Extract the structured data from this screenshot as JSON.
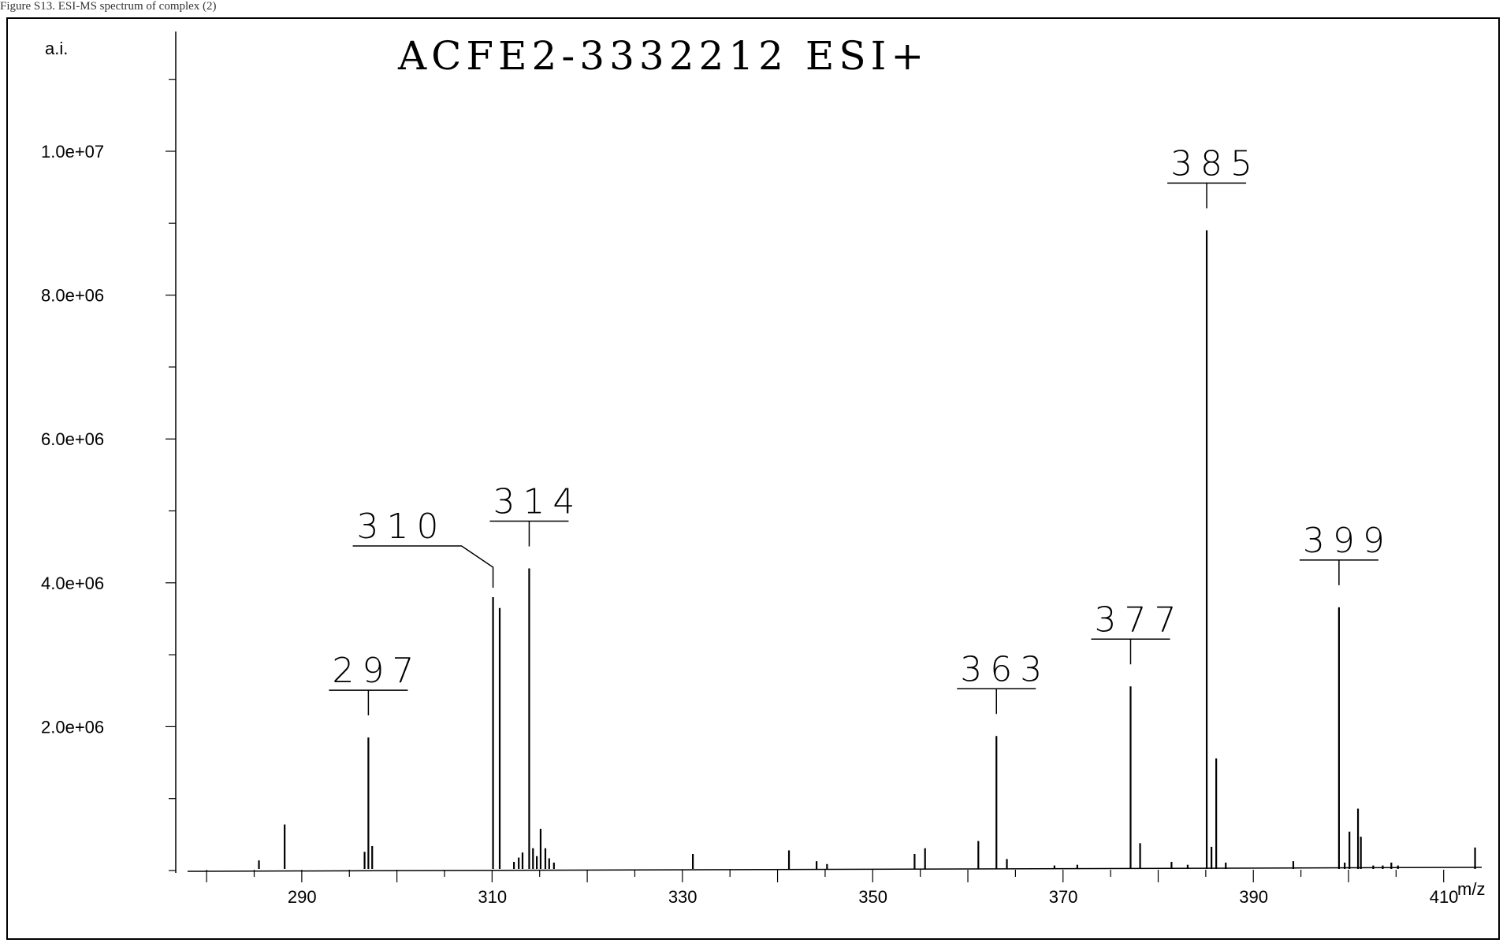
{
  "caption": "Figure S13. ESI-MS spectrum of complex (2)",
  "chart_data": {
    "type": "bar",
    "title": "ACFE2-3332212 ESI+",
    "ylabel": "a.i.",
    "xlabel": "m/z",
    "xlim": [
      278,
      414
    ],
    "ylim": [
      0,
      11500000
    ],
    "x_ticks": [
      290,
      310,
      330,
      350,
      370,
      390,
      410
    ],
    "y_ticks": [
      2000000,
      4000000,
      6000000,
      8000000,
      10000000
    ],
    "y_tick_labels": [
      "2.0e+06",
      "4.0e+06",
      "6.0e+06",
      "8.0e+06",
      "1.0e+07"
    ],
    "labeled_peaks": [
      {
        "label": "297",
        "x": 297.0,
        "y": 1850000
      },
      {
        "label": "310",
        "x": 310.1,
        "y": 3800000
      },
      {
        "label": "314",
        "x": 313.9,
        "y": 4200000
      },
      {
        "label": "363",
        "x": 363.0,
        "y": 1870000
      },
      {
        "label": "377",
        "x": 377.1,
        "y": 2560000
      },
      {
        "label": "385",
        "x": 385.1,
        "y": 8900000
      },
      {
        "label": "399",
        "x": 399.0,
        "y": 3660000
      }
    ],
    "minor_peaks": [
      {
        "x": 285.5,
        "y": 140000
      },
      {
        "x": 288.2,
        "y": 640000
      },
      {
        "x": 296.6,
        "y": 260000
      },
      {
        "x": 297.4,
        "y": 340000
      },
      {
        "x": 310.8,
        "y": 3650000
      },
      {
        "x": 312.3,
        "y": 120000
      },
      {
        "x": 312.8,
        "y": 180000
      },
      {
        "x": 313.2,
        "y": 250000
      },
      {
        "x": 314.3,
        "y": 310000
      },
      {
        "x": 314.7,
        "y": 200000
      },
      {
        "x": 315.1,
        "y": 580000
      },
      {
        "x": 315.6,
        "y": 310000
      },
      {
        "x": 316.0,
        "y": 170000
      },
      {
        "x": 316.5,
        "y": 110000
      },
      {
        "x": 331.1,
        "y": 230000
      },
      {
        "x": 341.2,
        "y": 280000
      },
      {
        "x": 344.1,
        "y": 130000
      },
      {
        "x": 345.2,
        "y": 90000
      },
      {
        "x": 354.4,
        "y": 230000
      },
      {
        "x": 355.5,
        "y": 310000
      },
      {
        "x": 361.1,
        "y": 410000
      },
      {
        "x": 364.1,
        "y": 160000
      },
      {
        "x": 369.1,
        "y": 70000
      },
      {
        "x": 371.5,
        "y": 80000
      },
      {
        "x": 378.1,
        "y": 380000
      },
      {
        "x": 381.4,
        "y": 120000
      },
      {
        "x": 383.1,
        "y": 80000
      },
      {
        "x": 385.6,
        "y": 330000
      },
      {
        "x": 386.1,
        "y": 1560000
      },
      {
        "x": 387.1,
        "y": 110000
      },
      {
        "x": 394.2,
        "y": 130000
      },
      {
        "x": 399.6,
        "y": 110000
      },
      {
        "x": 400.1,
        "y": 540000
      },
      {
        "x": 401.0,
        "y": 860000
      },
      {
        "x": 401.3,
        "y": 470000
      },
      {
        "x": 402.6,
        "y": 70000
      },
      {
        "x": 403.6,
        "y": 70000
      },
      {
        "x": 404.5,
        "y": 110000
      },
      {
        "x": 405.2,
        "y": 70000
      },
      {
        "x": 413.3,
        "y": 320000
      }
    ]
  }
}
